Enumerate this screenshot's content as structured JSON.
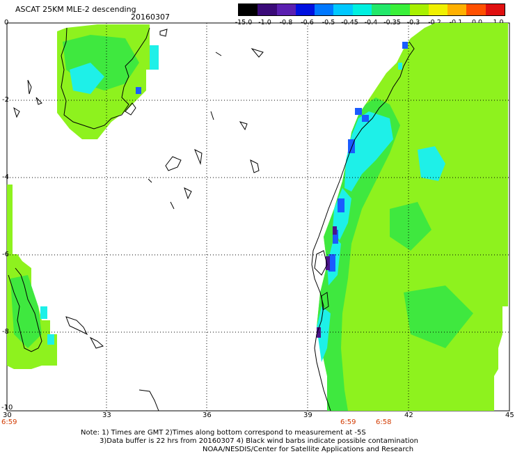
{
  "header": {
    "title": "ASCAT 25KM MLE-2 descending",
    "date": "20160307"
  },
  "colorbar": {
    "labels": [
      "-15.0",
      "-1.0",
      "-0.8",
      "-0.6",
      "-0.5",
      "-0.45",
      "-0.4",
      "-0.35",
      "-0.3",
      "-0.2",
      "-0.1",
      "0.0",
      "1.0"
    ],
    "colors": [
      "#000000",
      "#3a0a78",
      "#5a1fb0",
      "#0010e0",
      "#0078ff",
      "#00c8ff",
      "#00f0e0",
      "#22e86a",
      "#3af03a",
      "#a8f000",
      "#f0f000",
      "#ffb000",
      "#ff5000",
      "#e01010"
    ]
  },
  "axes": {
    "x_ticks": [
      "30",
      "33",
      "36",
      "39",
      "42",
      "45"
    ],
    "y_ticks": [
      "0",
      "-2",
      "-4",
      "-6",
      "-8",
      "-10"
    ],
    "lon_range": [
      30,
      45
    ],
    "lat_range": [
      -10,
      0
    ],
    "grid": "dotted"
  },
  "times": [
    "6:59",
    "6:59",
    "6:58"
  ],
  "notes": {
    "line1": "Note: 1) Times are GMT 2)Times along bottom correspond to measurement at -5S",
    "line2": "3)Data buffer is 22 hrs from 20160307 4) Black wind barbs indicate possible contamination",
    "line3": "NOAA/NESDIS/Center for Satellite Applications and Research"
  },
  "map_colors": {
    "ocean_green": "#3fe83f",
    "ocean_lime": "#8ef21e",
    "ocean_cyan": "#1ef0e8",
    "ocean_blue": "#1a5cff",
    "ocean_purple": "#4a148c",
    "coastline": "#000000",
    "grid": "#000000"
  }
}
